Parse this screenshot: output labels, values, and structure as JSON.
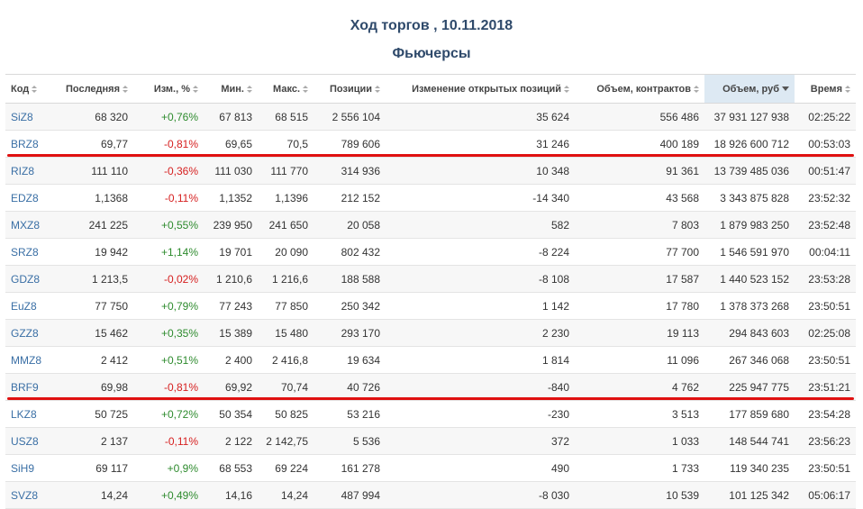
{
  "page": {
    "title": "Ход торгов , 10.11.2018",
    "subtitle": "Фьючерсы"
  },
  "table": {
    "columns": [
      {
        "label": "Код",
        "sort": "both"
      },
      {
        "label": "Последняя",
        "sort": "both"
      },
      {
        "label": "Изм., %",
        "sort": "both"
      },
      {
        "label": "Мин.",
        "sort": "both"
      },
      {
        "label": "Макс.",
        "sort": "both"
      },
      {
        "label": "Позиции",
        "sort": "both"
      },
      {
        "label": "Изменение открытых позиций",
        "sort": "both"
      },
      {
        "label": "Объем, контрактов",
        "sort": "both"
      },
      {
        "label": "Объем, руб",
        "sort": "desc"
      },
      {
        "label": "Время",
        "sort": "both"
      }
    ],
    "rows": [
      {
        "code": "SiZ8",
        "last": "68 320",
        "change": "+0,76%",
        "trend": "pos",
        "min": "67 813",
        "max": "68 515",
        "positions": "2 556 104",
        "oi_change": "35 624",
        "vol_contracts": "556 486",
        "vol_rub": "37 931 127 938",
        "time": "02:25:22"
      },
      {
        "code": "BRZ8",
        "last": "69,77",
        "change": "-0,81%",
        "trend": "neg",
        "min": "69,65",
        "max": "70,5",
        "positions": "789 606",
        "oi_change": "31 246",
        "vol_contracts": "400 189",
        "vol_rub": "18 926 600 712",
        "time": "00:53:03"
      },
      {
        "code": "RIZ8",
        "last": "111 110",
        "change": "-0,36%",
        "trend": "neg",
        "min": "111 030",
        "max": "111 770",
        "positions": "314 936",
        "oi_change": "10 348",
        "vol_contracts": "91 361",
        "vol_rub": "13 739 485 036",
        "time": "00:51:47"
      },
      {
        "code": "EDZ8",
        "last": "1,1368",
        "change": "-0,11%",
        "trend": "neg",
        "min": "1,1352",
        "max": "1,1396",
        "positions": "212 152",
        "oi_change": "-14 340",
        "vol_contracts": "43 568",
        "vol_rub": "3 343 875 828",
        "time": "23:52:32"
      },
      {
        "code": "MXZ8",
        "last": "241 225",
        "change": "+0,55%",
        "trend": "pos",
        "min": "239 950",
        "max": "241 650",
        "positions": "20 058",
        "oi_change": "582",
        "vol_contracts": "7 803",
        "vol_rub": "1 879 983 250",
        "time": "23:52:48"
      },
      {
        "code": "SRZ8",
        "last": "19 942",
        "change": "+1,14%",
        "trend": "pos",
        "min": "19 701",
        "max": "20 090",
        "positions": "802 432",
        "oi_change": "-8 224",
        "vol_contracts": "77 700",
        "vol_rub": "1 546 591 970",
        "time": "00:04:11"
      },
      {
        "code": "GDZ8",
        "last": "1 213,5",
        "change": "-0,02%",
        "trend": "neg",
        "min": "1 210,6",
        "max": "1 216,6",
        "positions": "188 588",
        "oi_change": "-8 108",
        "vol_contracts": "17 587",
        "vol_rub": "1 440 523 152",
        "time": "23:53:28"
      },
      {
        "code": "EuZ8",
        "last": "77 750",
        "change": "+0,79%",
        "trend": "pos",
        "min": "77 243",
        "max": "77 850",
        "positions": "250 342",
        "oi_change": "1 142",
        "vol_contracts": "17 780",
        "vol_rub": "1 378 373 268",
        "time": "23:50:51"
      },
      {
        "code": "GZZ8",
        "last": "15 462",
        "change": "+0,35%",
        "trend": "pos",
        "min": "15 389",
        "max": "15 480",
        "positions": "293 170",
        "oi_change": "2 230",
        "vol_contracts": "19 113",
        "vol_rub": "294 843 603",
        "time": "02:25:08"
      },
      {
        "code": "MMZ8",
        "last": "2 412",
        "change": "+0,51%",
        "trend": "pos",
        "min": "2 400",
        "max": "2 416,8",
        "positions": "19 634",
        "oi_change": "1 814",
        "vol_contracts": "11 096",
        "vol_rub": "267 346 068",
        "time": "23:50:51"
      },
      {
        "code": "BRF9",
        "last": "69,98",
        "change": "-0,81%",
        "trend": "neg",
        "min": "69,92",
        "max": "70,74",
        "positions": "40 726",
        "oi_change": "-840",
        "vol_contracts": "4 762",
        "vol_rub": "225 947 775",
        "time": "23:51:21"
      },
      {
        "code": "LKZ8",
        "last": "50 725",
        "change": "+0,72%",
        "trend": "pos",
        "min": "50 354",
        "max": "50 825",
        "positions": "53 216",
        "oi_change": "-230",
        "vol_contracts": "3 513",
        "vol_rub": "177 859 680",
        "time": "23:54:28"
      },
      {
        "code": "USZ8",
        "last": "2 137",
        "change": "-0,11%",
        "trend": "neg",
        "min": "2 122",
        "max": "2 142,75",
        "positions": "5 536",
        "oi_change": "372",
        "vol_contracts": "1 033",
        "vol_rub": "148 544 741",
        "time": "23:56:23"
      },
      {
        "code": "SiH9",
        "last": "69 117",
        "change": "+0,9%",
        "trend": "pos",
        "min": "68 553",
        "max": "69 224",
        "positions": "161 278",
        "oi_change": "490",
        "vol_contracts": "1 733",
        "vol_rub": "119 340 235",
        "time": "23:50:51"
      },
      {
        "code": "SVZ8",
        "last": "14,24",
        "change": "+0,49%",
        "trend": "pos",
        "min": "14,16",
        "max": "14,24",
        "positions": "487 994",
        "oi_change": "-8 030",
        "vol_contracts": "10 539",
        "vol_rub": "101 125 342",
        "time": "05:06:17"
      }
    ],
    "highlighted_rows": [
      "BRZ8",
      "BRF9"
    ]
  },
  "colors": {
    "title": "#2f4a6b",
    "code_link": "#3a6fa5",
    "positive": "#2e8b2e",
    "negative": "#d62020",
    "highlight_line": "#e01010",
    "sorted_header_bg": "#dde9f3"
  }
}
